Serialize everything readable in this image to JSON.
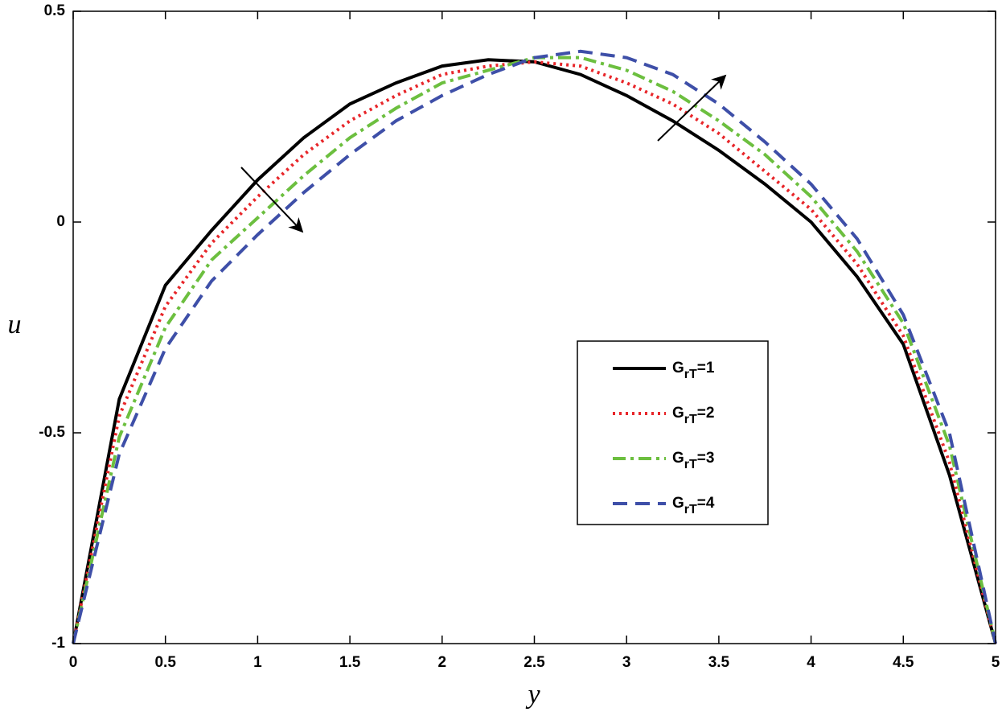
{
  "chart_data": {
    "type": "line",
    "xlabel": "y",
    "ylabel": "u",
    "x": [
      0,
      0.25,
      0.5,
      0.75,
      1,
      1.25,
      1.5,
      1.75,
      2,
      2.25,
      2.5,
      2.75,
      3,
      3.25,
      3.5,
      3.75,
      4,
      4.25,
      4.5,
      4.75,
      5
    ],
    "series": [
      {
        "name": "GrT=1",
        "color": "#000000",
        "dash": "solid",
        "values": [
          -1,
          -0.42,
          -0.15,
          -0.02,
          0.1,
          0.2,
          0.28,
          0.33,
          0.37,
          0.385,
          0.38,
          0.35,
          0.3,
          0.24,
          0.17,
          0.09,
          0.0,
          -0.13,
          -0.29,
          -0.6,
          -1
        ]
      },
      {
        "name": "GrT=2",
        "color": "#e8262a",
        "dash": "dotted",
        "values": [
          -1,
          -0.46,
          -0.2,
          -0.05,
          0.06,
          0.16,
          0.24,
          0.3,
          0.35,
          0.37,
          0.38,
          0.37,
          0.33,
          0.28,
          0.21,
          0.12,
          0.03,
          -0.1,
          -0.27,
          -0.57,
          -1
        ]
      },
      {
        "name": "GrT=3",
        "color": "#6cbf3f",
        "dash": "dashdot",
        "values": [
          -1,
          -0.51,
          -0.25,
          -0.09,
          0.01,
          0.11,
          0.2,
          0.27,
          0.33,
          0.36,
          0.39,
          0.39,
          0.36,
          0.31,
          0.24,
          0.16,
          0.06,
          -0.07,
          -0.24,
          -0.53,
          -1
        ]
      },
      {
        "name": "GrT=4",
        "color": "#3e4fa8",
        "dash": "dashed",
        "values": [
          -1,
          -0.55,
          -0.3,
          -0.14,
          -0.03,
          0.07,
          0.16,
          0.24,
          0.3,
          0.35,
          0.39,
          0.405,
          0.39,
          0.35,
          0.28,
          0.19,
          0.09,
          -0.04,
          -0.22,
          -0.5,
          -1
        ]
      }
    ],
    "xlim": [
      0,
      5
    ],
    "ylim": [
      -1,
      0.5
    ],
    "xticks": [
      0,
      0.5,
      1,
      1.5,
      2,
      2.5,
      3,
      3.5,
      4,
      4.5,
      5
    ],
    "yticks": [
      -1,
      -0.5,
      0,
      0.5
    ],
    "legend": "center-right",
    "grid": false
  }
}
